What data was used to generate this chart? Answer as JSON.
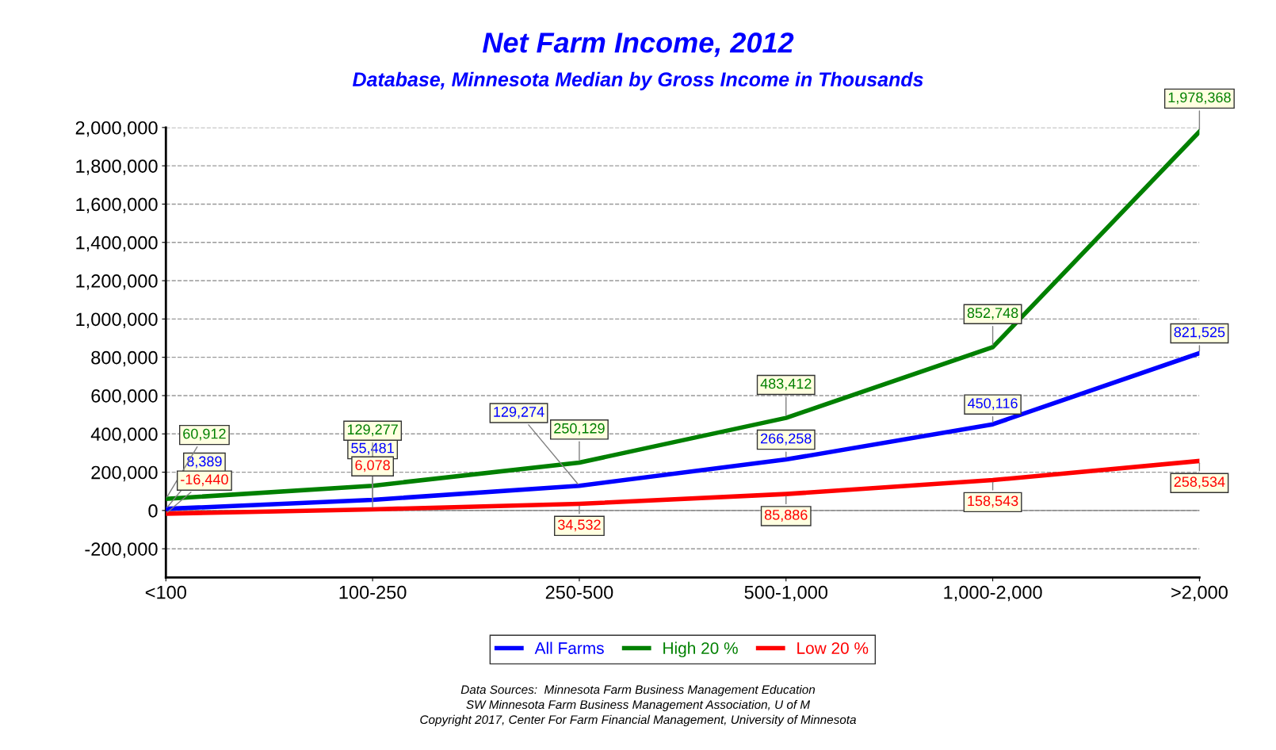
{
  "chart_data": {
    "type": "line",
    "title": "Net Farm Income, 2012",
    "subtitle": "Database, Minnesota Median by Gross Income in Thousands",
    "categories": [
      "<100",
      "100-250",
      "250-500",
      "500-1,000",
      "1,000-2,000",
      ">2,000"
    ],
    "series": [
      {
        "name": "All Farms",
        "color": "#0000ff",
        "values": [
          8389,
          55481,
          129274,
          266258,
          450116,
          821525
        ],
        "value_labels": [
          "8,389",
          "55,481",
          "129,274",
          "266,258",
          "450,116",
          "821,525"
        ]
      },
      {
        "name": "High 20 %",
        "color": "#008000",
        "values": [
          60912,
          129277,
          250129,
          483412,
          852748,
          1978368
        ],
        "value_labels": [
          "60,912",
          "129,277",
          "250,129",
          "483,412",
          "852,748",
          "1,978,368"
        ]
      },
      {
        "name": "Low 20 %",
        "color": "#ff0000",
        "values": [
          -16440,
          6078,
          34532,
          85886,
          158543,
          258534
        ],
        "value_labels": [
          "-16,440",
          "6,078",
          "34,532",
          "85,886",
          "158,543",
          "258,534"
        ]
      }
    ],
    "ylim": [
      -350000,
      2000000
    ],
    "yticks": [
      {
        "value": -200000,
        "label": "-200,000"
      },
      0,
      {
        "value": 200000,
        "label": "200,000"
      },
      {
        "value": 400000,
        "label": "400,000"
      },
      {
        "value": 600000,
        "label": "600,000"
      },
      {
        "value": 800000,
        "label": "800,000"
      },
      {
        "value": 1000000,
        "label": "1,000,000"
      },
      {
        "value": 1200000,
        "label": "1,200,000"
      },
      {
        "value": 1400000,
        "label": "1,400,000"
      },
      {
        "value": 1600000,
        "label": "1,600,000"
      },
      {
        "value": 1800000,
        "label": "1,800,000"
      },
      {
        "value": 2000000,
        "label": "2,000,000"
      }
    ],
    "ref_lines": [
      {
        "axis": "y",
        "value": 0,
        "color": "#808080"
      }
    ],
    "grid": "y",
    "legend": "bottom",
    "marker": "none",
    "line_style": "solid",
    "annotations": [
      "Data Sources:  Minnesota Farm Business Management Education",
      "SW Minnesota Farm Business Management Association, U of M",
      "Copyright 2017, Center For Farm Financial Management, University of Minnesota"
    ]
  }
}
